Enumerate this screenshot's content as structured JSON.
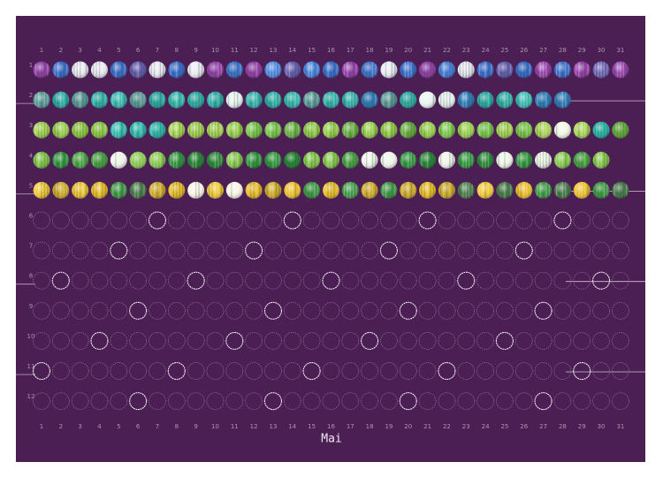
{
  "title": "Mai",
  "days": [
    1,
    2,
    3,
    4,
    5,
    6,
    7,
    8,
    9,
    10,
    11,
    12,
    13,
    14,
    15,
    16,
    17,
    18,
    19,
    20,
    21,
    22,
    23,
    24,
    25,
    26,
    27,
    28,
    29,
    30,
    31
  ],
  "rows": [
    1,
    2,
    3,
    4,
    5,
    6,
    7,
    8,
    9,
    10,
    11,
    12
  ]
}
